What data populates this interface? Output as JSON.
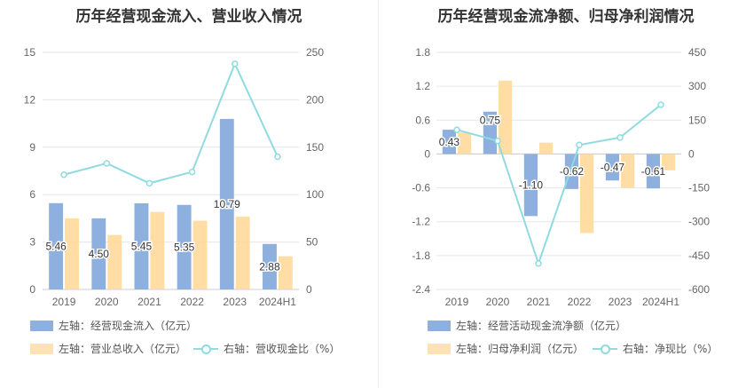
{
  "left_title": "历年经营现金流入、营业收入情况",
  "right_title": "历年经营现金流净额、归母净利润情况",
  "colors": {
    "bar_blue": "#8eb0de",
    "bar_yellow": "#ffd99b",
    "line_cyan": "#8fdbe0"
  },
  "legend": {
    "left": [
      "左轴：经营现金流入（亿元）",
      "左轴：营业总收入（亿元）",
      "右轴：营收现金比（%）"
    ],
    "right": [
      "左轴：经营活动现金流净额（亿元）",
      "左轴：归母净利润（亿元）",
      "右轴：净现比（%）"
    ]
  },
  "chart_data": [
    {
      "type": "bar",
      "categories": [
        "2019",
        "2020",
        "2021",
        "2022",
        "2023",
        "2024H1"
      ],
      "y_left_ticks": [
        "0",
        "3",
        "6",
        "9",
        "12",
        "15"
      ],
      "y_right_ticks": [
        "0",
        "50",
        "100",
        "150",
        "200",
        "250"
      ],
      "ylim_left": [
        0,
        15
      ],
      "ylim_right": [
        0,
        250
      ],
      "series": [
        {
          "name": "左轴：经营现金流入（亿元）",
          "axis": "left",
          "type": "bar",
          "values": [
            5.46,
            4.5,
            5.45,
            5.35,
            10.79,
            2.88
          ],
          "labels": [
            "5.46",
            "4.50",
            "5.45",
            "5.35",
            "10.79",
            "2.88"
          ]
        },
        {
          "name": "左轴：营业总收入（亿元）",
          "axis": "left",
          "type": "bar",
          "values": [
            4.5,
            3.45,
            4.9,
            4.35,
            4.6,
            2.1
          ]
        },
        {
          "name": "右轴：营收现金比（%）",
          "axis": "right",
          "type": "line",
          "values": [
            121,
            133,
            112,
            124,
            238,
            140
          ]
        }
      ]
    },
    {
      "type": "bar",
      "categories": [
        "2019",
        "2020",
        "2021",
        "2022",
        "2023",
        "2024H1"
      ],
      "y_left_ticks": [
        "-2.4",
        "-1.8",
        "-1.2",
        "-0.6",
        "0",
        "0.6",
        "1.2",
        "1.8"
      ],
      "y_right_ticks": [
        "-600",
        "-450",
        "-300",
        "-150",
        "0",
        "150",
        "300",
        "450"
      ],
      "ylim_left": [
        -2.4,
        1.8
      ],
      "ylim_right": [
        -600,
        450
      ],
      "series": [
        {
          "name": "左轴：经营活动现金流净额（亿元）",
          "axis": "left",
          "type": "bar",
          "values": [
            0.43,
            0.75,
            -1.1,
            -0.62,
            -0.47,
            -0.61
          ],
          "labels": [
            "0.43",
            "0.75",
            "-1.10",
            "-0.62",
            "-0.47",
            "-0.61"
          ]
        },
        {
          "name": "左轴：归母净利润（亿元）",
          "axis": "left",
          "type": "bar",
          "values": [
            0.38,
            1.3,
            0.2,
            -1.4,
            -0.6,
            -0.29
          ]
        },
        {
          "name": "右轴：净现比（%）",
          "axis": "right",
          "type": "line",
          "values": [
            107,
            58,
            -485,
            40,
            73,
            218
          ]
        }
      ]
    }
  ]
}
